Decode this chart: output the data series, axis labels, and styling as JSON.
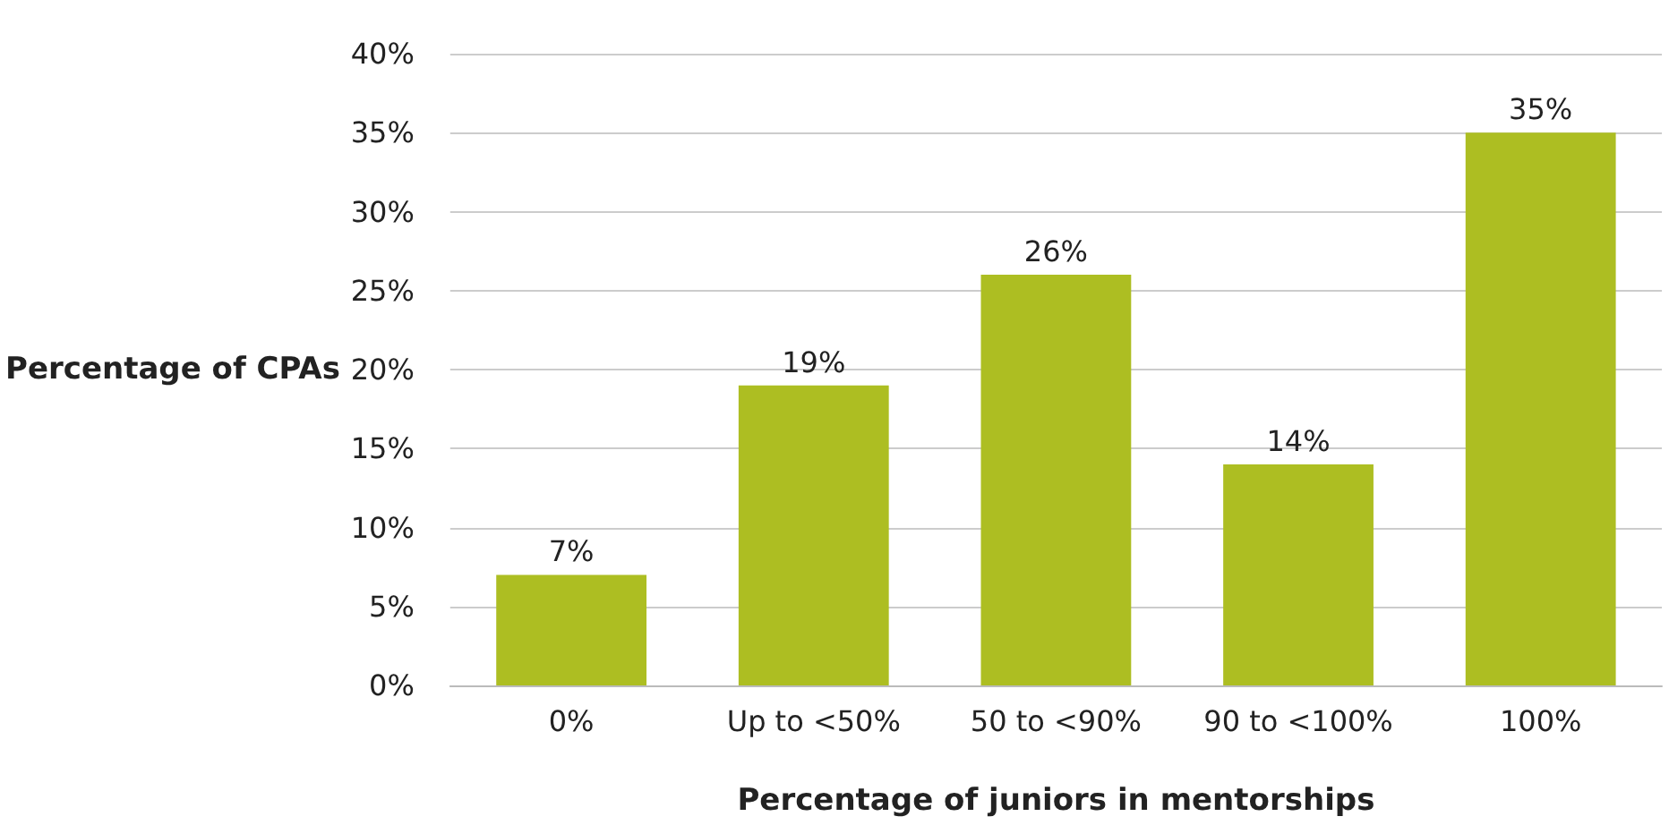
{
  "chart_data": {
    "type": "bar",
    "xlabel": "Percentage of juniors in mentorships",
    "ylabel": "Percentage of CPAs",
    "categories": [
      "0%",
      "Up to <50%",
      "50 to <90%",
      "90 to <100%",
      "100%"
    ],
    "values": [
      7,
      19,
      26,
      14,
      35
    ],
    "value_labels": [
      "7%",
      "19%",
      "26%",
      "14%",
      "35%"
    ],
    "color": "#adbe22",
    "ylim": [
      0,
      40
    ],
    "yticks": [
      {
        "value": 0,
        "label": "0%"
      },
      {
        "value": 5,
        "label": "5%"
      },
      {
        "value": 10,
        "label": "10%"
      },
      {
        "value": 15,
        "label": "15%"
      },
      {
        "value": 20,
        "label": "20%"
      },
      {
        "value": 25,
        "label": "25%"
      },
      {
        "value": 30,
        "label": "30%"
      },
      {
        "value": 35,
        "label": "35%"
      },
      {
        "value": 40,
        "label": "40%"
      }
    ],
    "grid": "y"
  }
}
